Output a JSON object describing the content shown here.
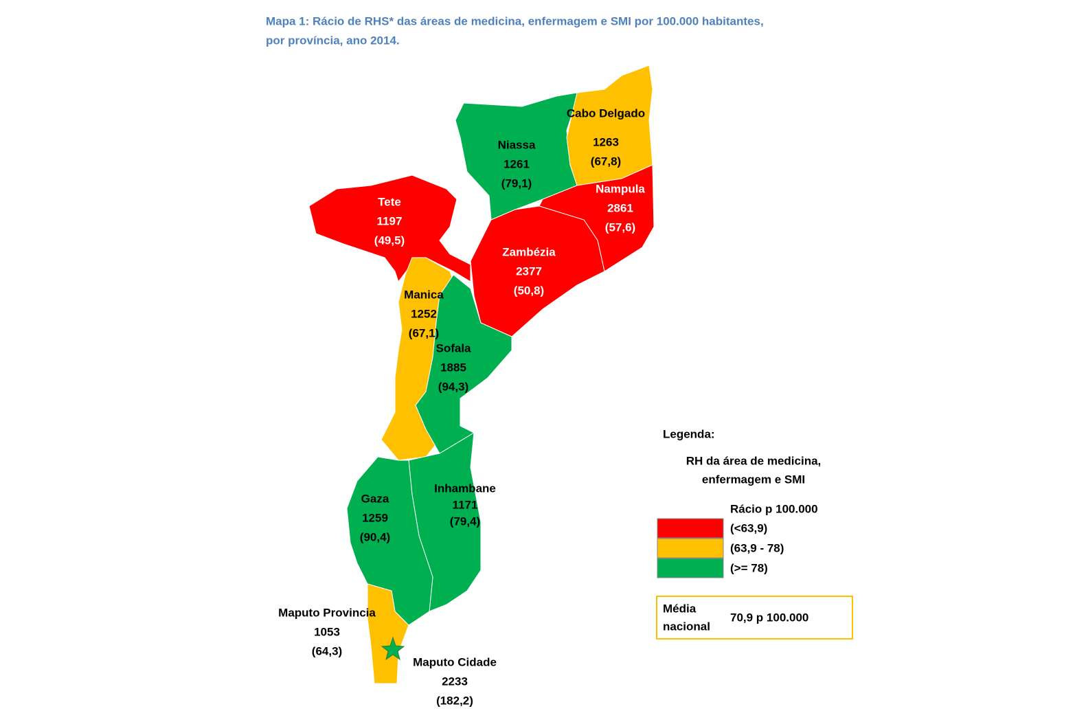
{
  "title_lines": [
    "Mapa 1: Rácio de RHS* das áreas de medicina, enfermagem e SMI por 100.000 habitantes,",
    "por província, ano 2014."
  ],
  "provinces": [
    {
      "name": "Niassa",
      "count": 1261,
      "ratio": "(79,1)",
      "color": "#00b050"
    },
    {
      "name": "Cabo Delgado",
      "count": 1263,
      "ratio": "(67,8)",
      "color": "#ffc000"
    },
    {
      "name": "Nampula",
      "count": 2861,
      "ratio": "(57,6)",
      "color": "#ff0000"
    },
    {
      "name": "Zambézia",
      "count": 2377,
      "ratio": "(50,8)",
      "color": "#ff0000"
    },
    {
      "name": "Tete",
      "count": 1197,
      "ratio": "(49,5)",
      "color": "#ff0000"
    },
    {
      "name": "Manica",
      "count": 1252,
      "ratio": "(67,1)",
      "color": "#ffc000"
    },
    {
      "name": "Sofala",
      "count": 1885,
      "ratio": "(94,3)",
      "color": "#00b050"
    },
    {
      "name": "Inhambane",
      "count": 1171,
      "ratio": "(79,4)",
      "color": "#00b050"
    },
    {
      "name": "Gaza",
      "count": 1259,
      "ratio": "(90,4)",
      "color": "#00b050"
    },
    {
      "name": "Maputo Provincia",
      "count": 1053,
      "ratio": "(64,3)",
      "color": "#ffc000"
    },
    {
      "name": "Maputo Cidade",
      "count": 2233,
      "ratio": "(182,2)",
      "color": "#00b050"
    }
  ],
  "legend": {
    "title": "Legenda:",
    "subtitle_lines": [
      "RH da área de medicina,",
      "enfermagem e SMI"
    ],
    "header": "Rácio p 100.000",
    "entries": [
      {
        "label": "(<63,9)",
        "color": "#ff0000"
      },
      {
        "label": "(63,9 - 78)",
        "color": "#ffc000"
      },
      {
        "label": "(>= 78)",
        "color": "#00b050"
      }
    ]
  },
  "national_average": {
    "label_lines": [
      "Média",
      "nacional"
    ],
    "value": "70,9 p 100.000"
  }
}
